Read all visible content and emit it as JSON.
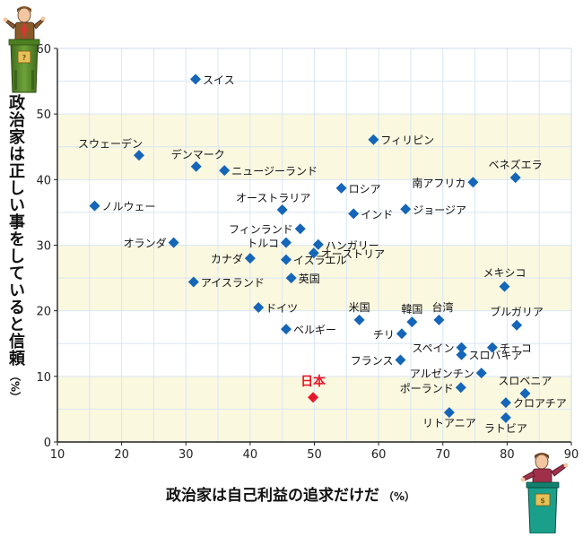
{
  "chart_data": {
    "type": "scatter",
    "title": "",
    "xlabel": "政治家は自己利益の追求だけだ",
    "xunit": "（%）",
    "ylabel": "政治家は正しい事をしていると信頼",
    "yunit": "（%）",
    "xlim": [
      10,
      90
    ],
    "ylim": [
      0,
      60
    ],
    "xticks": [
      10,
      20,
      30,
      40,
      50,
      60,
      70,
      80,
      90
    ],
    "yticks": [
      0,
      10,
      20,
      30,
      40,
      50,
      60
    ],
    "grid": true,
    "band_color": "#fbf8e0",
    "marker_color": "#1565b8",
    "highlight_color": "#e8182c",
    "points": [
      {
        "label": "スイス",
        "x": 31.5,
        "y": 55.3
      },
      {
        "label": "フィリピン",
        "x": 59.2,
        "y": 46.1
      },
      {
        "label": "スウェーデン",
        "x": 22.7,
        "y": 43.7
      },
      {
        "label": "デンマーク",
        "x": 31.6,
        "y": 42.0
      },
      {
        "label": "ニュージーランド",
        "x": 36.0,
        "y": 41.4
      },
      {
        "label": "ベネズエラ",
        "x": 81.3,
        "y": 40.3
      },
      {
        "label": "南アフリカ",
        "x": 74.7,
        "y": 39.6
      },
      {
        "label": "ロシア",
        "x": 54.2,
        "y": 38.7
      },
      {
        "label": "ノルウェー",
        "x": 15.8,
        "y": 36.0
      },
      {
        "label": "オーストラリア",
        "x": 45.0,
        "y": 35.4
      },
      {
        "label": "ジョージア",
        "x": 64.2,
        "y": 35.5
      },
      {
        "label": "インド",
        "x": 56.1,
        "y": 34.8
      },
      {
        "label": "フィンランド",
        "x": 47.8,
        "y": 32.5
      },
      {
        "label": "オランダ",
        "x": 28.1,
        "y": 30.4
      },
      {
        "label": "トルコ",
        "x": 45.6,
        "y": 30.4
      },
      {
        "label": "ハンガリー",
        "x": 50.6,
        "y": 30.1
      },
      {
        "label": "オーストリア",
        "x": 49.9,
        "y": 28.8
      },
      {
        "label": "カナダ",
        "x": 40.0,
        "y": 28.0
      },
      {
        "label": "イスラエル",
        "x": 45.6,
        "y": 27.8
      },
      {
        "label": "英国",
        "x": 46.4,
        "y": 25.0
      },
      {
        "label": "アイスランド",
        "x": 31.2,
        "y": 24.4
      },
      {
        "label": "メキシコ",
        "x": 79.6,
        "y": 23.7
      },
      {
        "label": "ドイツ",
        "x": 41.3,
        "y": 20.5
      },
      {
        "label": "米国",
        "x": 57.0,
        "y": 18.6
      },
      {
        "label": "韓国",
        "x": 65.2,
        "y": 18.3
      },
      {
        "label": "台湾",
        "x": 69.4,
        "y": 18.6
      },
      {
        "label": "ブルガリア",
        "x": 81.5,
        "y": 17.8
      },
      {
        "label": "ベルギー",
        "x": 45.6,
        "y": 17.2
      },
      {
        "label": "チリ",
        "x": 63.6,
        "y": 16.5
      },
      {
        "label": "スペイン",
        "x": 72.9,
        "y": 14.4
      },
      {
        "label": "チェコ",
        "x": 77.7,
        "y": 14.4
      },
      {
        "label": "スロバキア",
        "x": 72.9,
        "y": 13.3
      },
      {
        "label": "フランス",
        "x": 63.4,
        "y": 12.5
      },
      {
        "label": "アルゼンチン",
        "x": 76.0,
        "y": 10.5
      },
      {
        "label": "ポーランド",
        "x": 72.8,
        "y": 8.3
      },
      {
        "label": "スロベニア",
        "x": 82.8,
        "y": 7.4
      },
      {
        "label": "日本",
        "x": 49.8,
        "y": 6.8,
        "highlight": true
      },
      {
        "label": "クロアチア",
        "x": 79.8,
        "y": 6.0
      },
      {
        "label": "リトアニア",
        "x": 71.0,
        "y": 4.5
      },
      {
        "label": "ラトビア",
        "x": 79.8,
        "y": 3.7
      }
    ]
  }
}
